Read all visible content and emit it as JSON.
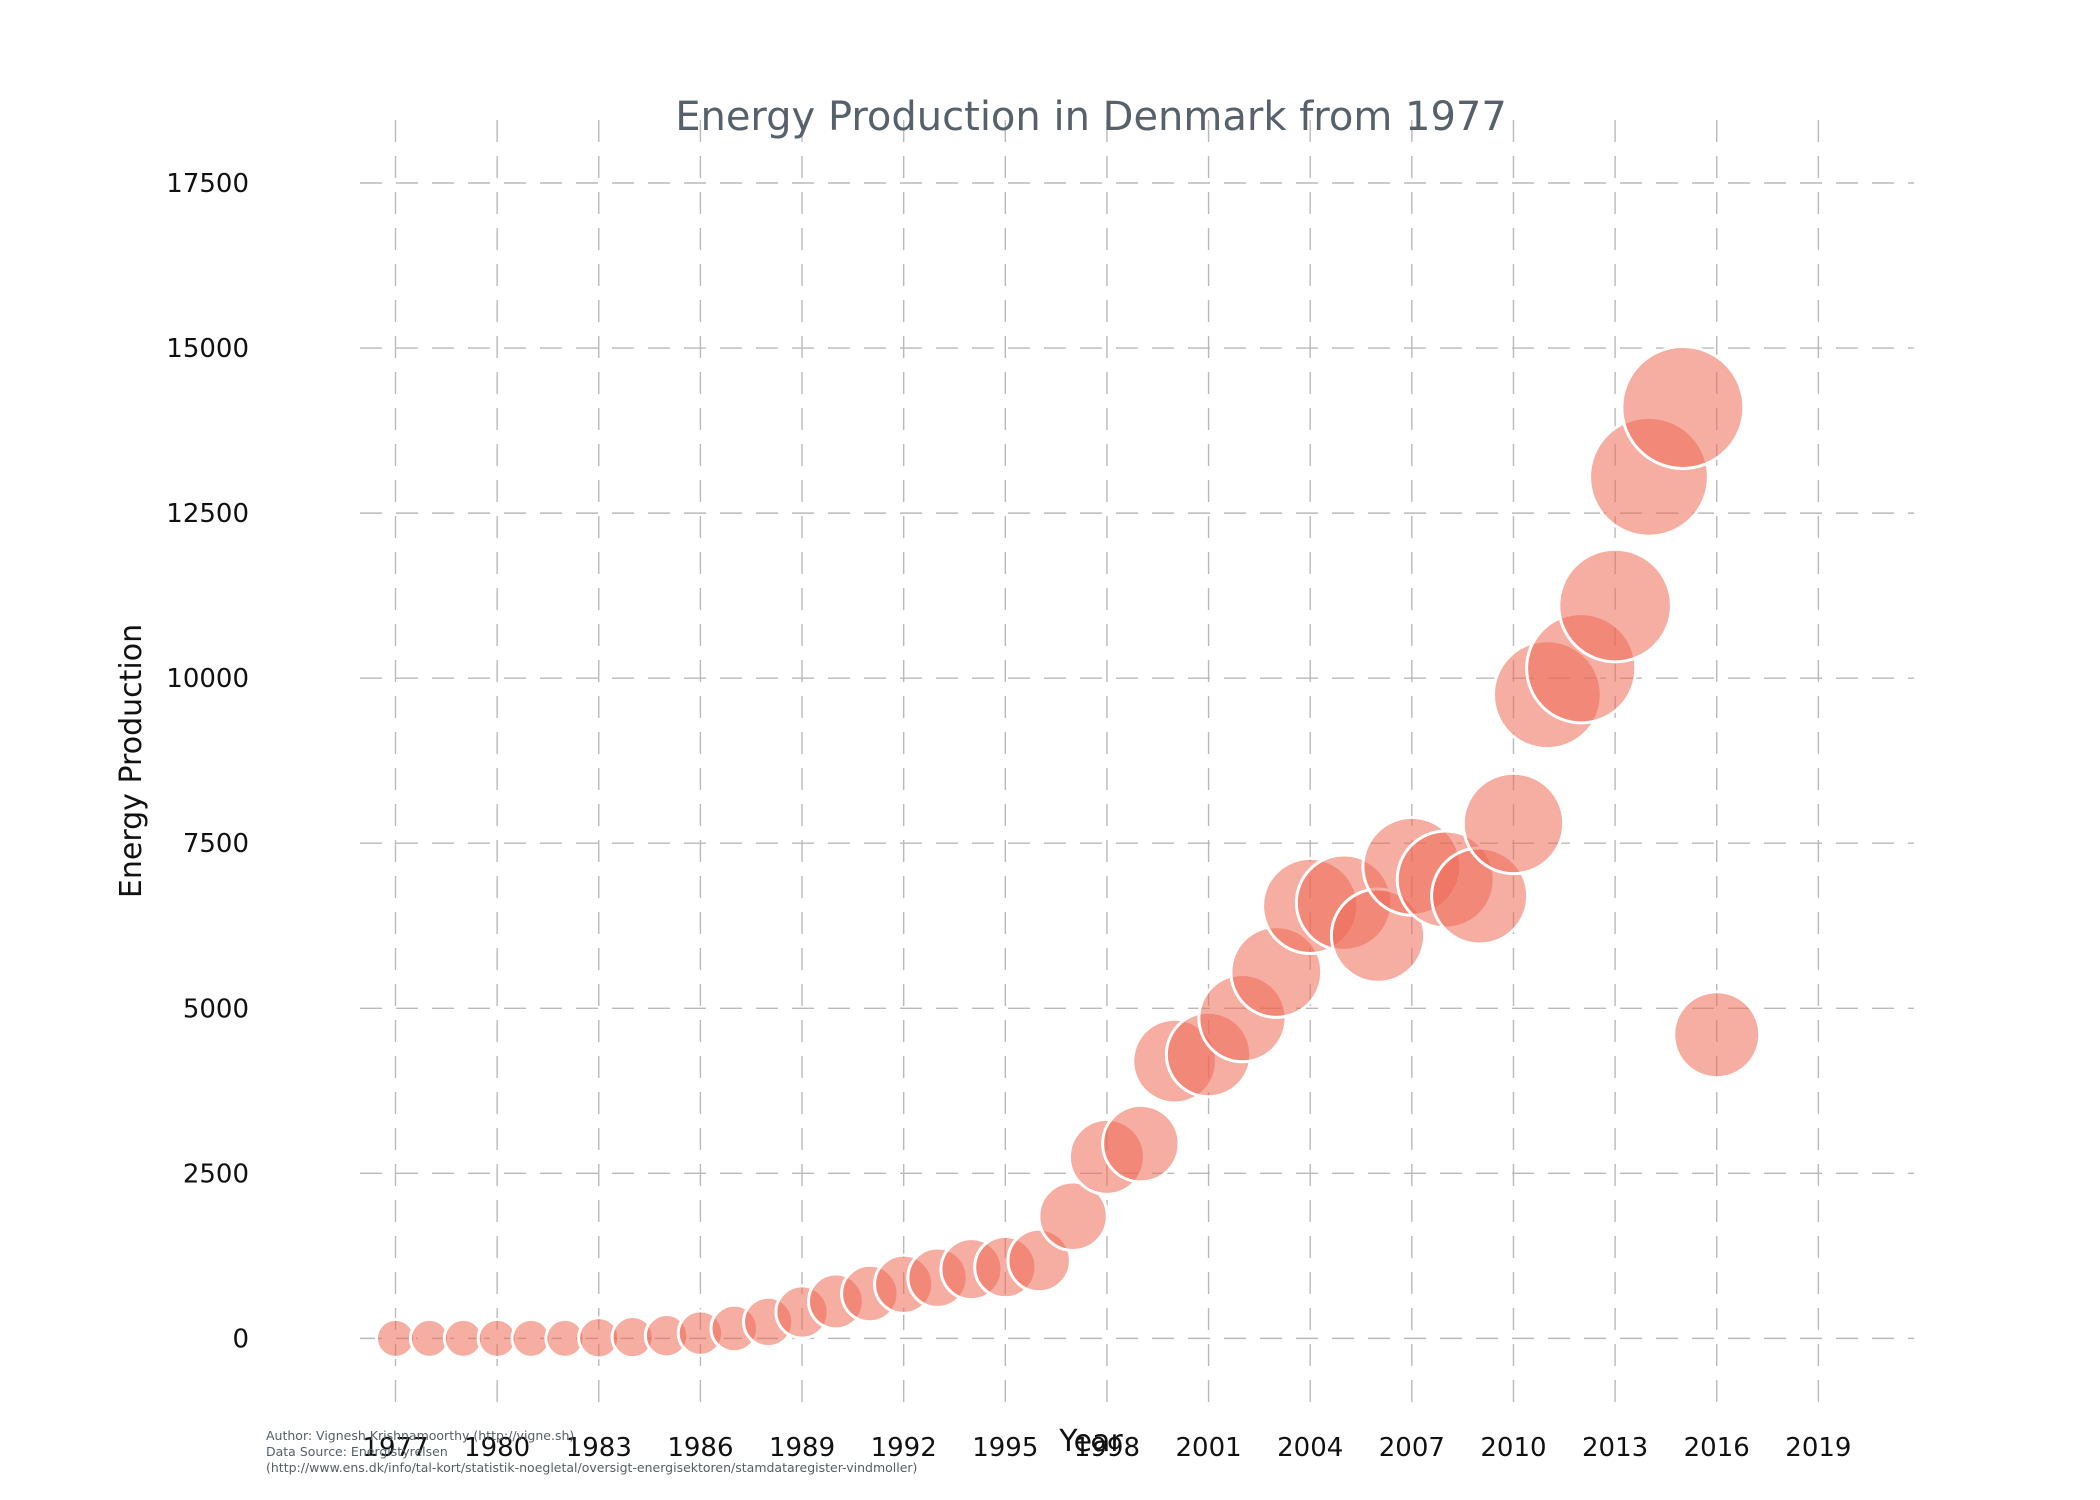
{
  "chart_data": {
    "type": "scatter",
    "title": "Energy Production in Denmark from 1977",
    "xlabel": "Year",
    "ylabel": "Energy Production",
    "xlim": [
      1973,
      2022
    ],
    "ylim": [
      -600,
      18000
    ],
    "x_ticks": [
      1977,
      1980,
      1983,
      1986,
      1989,
      1992,
      1995,
      1998,
      2001,
      2004,
      2007,
      2010,
      2013,
      2016,
      2019
    ],
    "y_ticks": [
      0,
      2500,
      5000,
      7500,
      10000,
      12500,
      15000,
      17500
    ],
    "grid": true,
    "legend": "none",
    "marker_color": "#ef6a55",
    "marker_edge_color": "#ffffff",
    "points": [
      {
        "year": 1977,
        "value": 0
      },
      {
        "year": 1978,
        "value": 0
      },
      {
        "year": 1979,
        "value": 0
      },
      {
        "year": 1980,
        "value": 0
      },
      {
        "year": 1981,
        "value": 0
      },
      {
        "year": 1982,
        "value": 0
      },
      {
        "year": 1983,
        "value": 10
      },
      {
        "year": 1984,
        "value": 20
      },
      {
        "year": 1985,
        "value": 40
      },
      {
        "year": 1986,
        "value": 80
      },
      {
        "year": 1987,
        "value": 150
      },
      {
        "year": 1988,
        "value": 250
      },
      {
        "year": 1989,
        "value": 400
      },
      {
        "year": 1990,
        "value": 560
      },
      {
        "year": 1991,
        "value": 680
      },
      {
        "year": 1992,
        "value": 820
      },
      {
        "year": 1993,
        "value": 920
      },
      {
        "year": 1994,
        "value": 1050
      },
      {
        "year": 1995,
        "value": 1080
      },
      {
        "year": 1996,
        "value": 1180
      },
      {
        "year": 1997,
        "value": 1850
      },
      {
        "year": 1998,
        "value": 2750
      },
      {
        "year": 1999,
        "value": 2950
      },
      {
        "year": 2000,
        "value": 4200
      },
      {
        "year": 2001,
        "value": 4300
      },
      {
        "year": 2002,
        "value": 4850
      },
      {
        "year": 2003,
        "value": 5550
      },
      {
        "year": 2004,
        "value": 6550
      },
      {
        "year": 2005,
        "value": 6600
      },
      {
        "year": 2006,
        "value": 6100
      },
      {
        "year": 2007,
        "value": 7150
      },
      {
        "year": 2008,
        "value": 6950
      },
      {
        "year": 2009,
        "value": 6700
      },
      {
        "year": 2010,
        "value": 7800
      },
      {
        "year": 2011,
        "value": 9750
      },
      {
        "year": 2012,
        "value": 10150
      },
      {
        "year": 2013,
        "value": 11100
      },
      {
        "year": 2014,
        "value": 13050
      },
      {
        "year": 2015,
        "value": 14100
      },
      {
        "year": 2016,
        "value": 4600
      }
    ]
  },
  "footnote": {
    "author": "Author: Vignesh Krishnamoorthy (http://vigne.sh)",
    "source": "Data Source: Energistyrelsen",
    "url": "(http://www.ens.dk/info/tal-kort/statistik-noegletal/oversigt-energisektoren/stamdataregister-vindmoller)"
  }
}
